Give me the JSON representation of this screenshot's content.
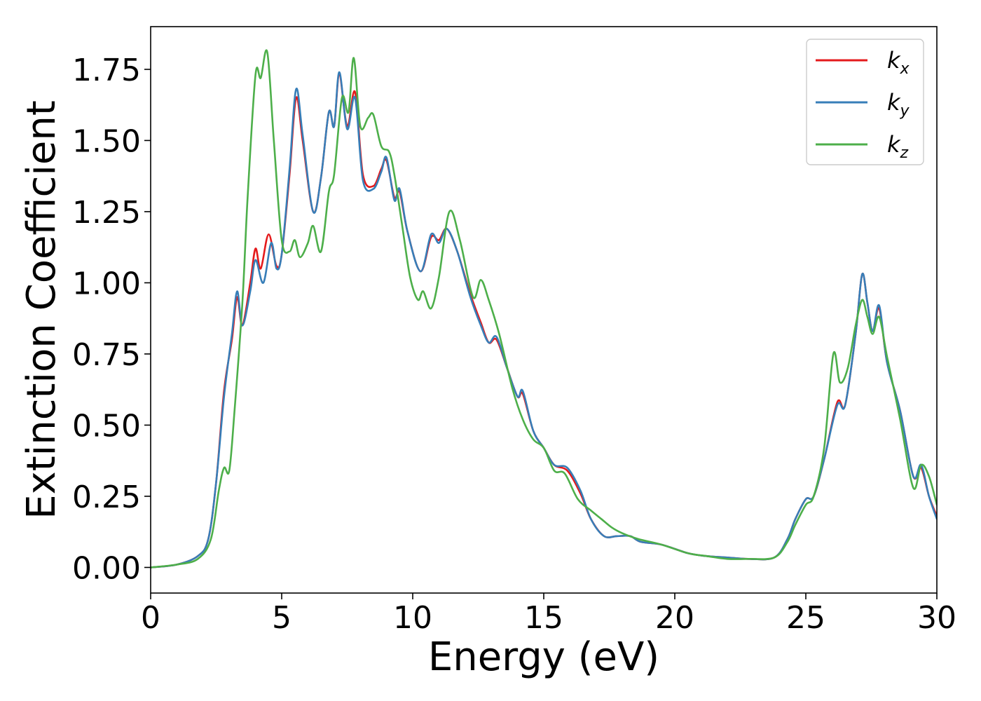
{
  "chart_data": {
    "type": "line",
    "xlabel": "Energy (eV)",
    "ylabel": "Extinction Coefficient",
    "xlim": [
      0,
      30
    ],
    "ylim": [
      -0.09,
      1.9
    ],
    "xticks": [
      0,
      5,
      10,
      15,
      20,
      25,
      30
    ],
    "xtick_labels": [
      "0",
      "5",
      "10",
      "15",
      "20",
      "25",
      "30"
    ],
    "yticks": [
      0.0,
      0.25,
      0.5,
      0.75,
      1.0,
      1.25,
      1.5,
      1.75
    ],
    "ytick_labels": [
      "0.00",
      "0.25",
      "0.50",
      "0.75",
      "1.00",
      "1.25",
      "1.50",
      "1.75"
    ],
    "grid": false,
    "legend_position": "top-right",
    "series": [
      {
        "name": "k_x",
        "label_base": "k",
        "label_sub": "x",
        "color": "#e41a1c",
        "points": [
          [
            0,
            0.0
          ],
          [
            1,
            0.01
          ],
          [
            1.8,
            0.04
          ],
          [
            2.2,
            0.1
          ],
          [
            2.5,
            0.3
          ],
          [
            2.8,
            0.62
          ],
          [
            3.1,
            0.8
          ],
          [
            3.3,
            0.95
          ],
          [
            3.5,
            0.85
          ],
          [
            3.8,
            1.0
          ],
          [
            4.0,
            1.12
          ],
          [
            4.2,
            1.05
          ],
          [
            4.5,
            1.17
          ],
          [
            4.8,
            1.06
          ],
          [
            5.0,
            1.1
          ],
          [
            5.3,
            1.38
          ],
          [
            5.55,
            1.65
          ],
          [
            5.8,
            1.5
          ],
          [
            6.2,
            1.25
          ],
          [
            6.5,
            1.37
          ],
          [
            6.8,
            1.6
          ],
          [
            7.0,
            1.55
          ],
          [
            7.2,
            1.73
          ],
          [
            7.5,
            1.55
          ],
          [
            7.8,
            1.67
          ],
          [
            8.1,
            1.38
          ],
          [
            8.5,
            1.34
          ],
          [
            8.8,
            1.4
          ],
          [
            9.0,
            1.43
          ],
          [
            9.3,
            1.3
          ],
          [
            9.5,
            1.32
          ],
          [
            9.8,
            1.18
          ],
          [
            10.3,
            1.04
          ],
          [
            10.7,
            1.16
          ],
          [
            11.0,
            1.15
          ],
          [
            11.3,
            1.19
          ],
          [
            11.7,
            1.11
          ],
          [
            12.2,
            0.96
          ],
          [
            12.6,
            0.86
          ],
          [
            12.9,
            0.79
          ],
          [
            13.2,
            0.8
          ],
          [
            13.6,
            0.7
          ],
          [
            14.0,
            0.6
          ],
          [
            14.2,
            0.61
          ],
          [
            14.6,
            0.48
          ],
          [
            15.0,
            0.42
          ],
          [
            15.4,
            0.36
          ],
          [
            15.9,
            0.34
          ],
          [
            16.4,
            0.26
          ],
          [
            16.8,
            0.17
          ],
          [
            17.3,
            0.11
          ],
          [
            17.8,
            0.11
          ],
          [
            18.3,
            0.11
          ],
          [
            18.7,
            0.09
          ],
          [
            19.5,
            0.08
          ],
          [
            20.5,
            0.05
          ],
          [
            21.2,
            0.04
          ],
          [
            22.0,
            0.035
          ],
          [
            22.8,
            0.03
          ],
          [
            23.8,
            0.035
          ],
          [
            24.3,
            0.1
          ],
          [
            24.6,
            0.17
          ],
          [
            25.0,
            0.24
          ],
          [
            25.3,
            0.25
          ],
          [
            25.7,
            0.38
          ],
          [
            26.2,
            0.58
          ],
          [
            26.5,
            0.57
          ],
          [
            26.9,
            0.82
          ],
          [
            27.15,
            1.03
          ],
          [
            27.35,
            0.93
          ],
          [
            27.55,
            0.83
          ],
          [
            27.8,
            0.91
          ],
          [
            28.1,
            0.72
          ],
          [
            28.6,
            0.55
          ],
          [
            29.1,
            0.32
          ],
          [
            29.4,
            0.35
          ],
          [
            29.7,
            0.25
          ],
          [
            30,
            0.18
          ]
        ]
      },
      {
        "name": "k_y",
        "label_base": "k",
        "label_sub": "y",
        "color": "#377eb8",
        "points": [
          [
            0,
            0.0
          ],
          [
            1,
            0.01
          ],
          [
            1.8,
            0.04
          ],
          [
            2.2,
            0.1
          ],
          [
            2.5,
            0.3
          ],
          [
            2.8,
            0.6
          ],
          [
            3.1,
            0.82
          ],
          [
            3.3,
            0.97
          ],
          [
            3.5,
            0.85
          ],
          [
            3.8,
            0.97
          ],
          [
            4.0,
            1.08
          ],
          [
            4.3,
            1.0
          ],
          [
            4.6,
            1.14
          ],
          [
            4.8,
            1.05
          ],
          [
            5.0,
            1.1
          ],
          [
            5.3,
            1.4
          ],
          [
            5.55,
            1.68
          ],
          [
            5.8,
            1.52
          ],
          [
            6.2,
            1.25
          ],
          [
            6.5,
            1.37
          ],
          [
            6.8,
            1.6
          ],
          [
            7.0,
            1.55
          ],
          [
            7.2,
            1.74
          ],
          [
            7.5,
            1.54
          ],
          [
            7.8,
            1.65
          ],
          [
            8.1,
            1.36
          ],
          [
            8.5,
            1.33
          ],
          [
            8.8,
            1.39
          ],
          [
            9.0,
            1.44
          ],
          [
            9.3,
            1.29
          ],
          [
            9.5,
            1.33
          ],
          [
            9.8,
            1.18
          ],
          [
            10.3,
            1.04
          ],
          [
            10.7,
            1.17
          ],
          [
            11.0,
            1.14
          ],
          [
            11.3,
            1.19
          ],
          [
            11.7,
            1.11
          ],
          [
            12.2,
            0.95
          ],
          [
            12.6,
            0.85
          ],
          [
            12.9,
            0.79
          ],
          [
            13.2,
            0.81
          ],
          [
            13.6,
            0.7
          ],
          [
            14.0,
            0.6
          ],
          [
            14.2,
            0.62
          ],
          [
            14.6,
            0.48
          ],
          [
            15.0,
            0.42
          ],
          [
            15.4,
            0.36
          ],
          [
            15.9,
            0.35
          ],
          [
            16.4,
            0.27
          ],
          [
            16.8,
            0.17
          ],
          [
            17.3,
            0.11
          ],
          [
            17.8,
            0.11
          ],
          [
            18.3,
            0.11
          ],
          [
            18.7,
            0.09
          ],
          [
            19.5,
            0.08
          ],
          [
            20.5,
            0.05
          ],
          [
            21.2,
            0.04
          ],
          [
            22.0,
            0.035
          ],
          [
            22.8,
            0.03
          ],
          [
            23.8,
            0.035
          ],
          [
            24.3,
            0.1
          ],
          [
            24.6,
            0.17
          ],
          [
            25.0,
            0.24
          ],
          [
            25.3,
            0.25
          ],
          [
            25.7,
            0.38
          ],
          [
            26.2,
            0.57
          ],
          [
            26.5,
            0.57
          ],
          [
            26.9,
            0.82
          ],
          [
            27.15,
            1.03
          ],
          [
            27.35,
            0.93
          ],
          [
            27.55,
            0.83
          ],
          [
            27.8,
            0.92
          ],
          [
            28.1,
            0.72
          ],
          [
            28.6,
            0.55
          ],
          [
            29.1,
            0.32
          ],
          [
            29.4,
            0.36
          ],
          [
            29.7,
            0.25
          ],
          [
            30,
            0.17
          ]
        ]
      },
      {
        "name": "k_z",
        "label_base": "k",
        "label_sub": "z",
        "color": "#4daf4a",
        "points": [
          [
            0,
            0.0
          ],
          [
            1,
            0.01
          ],
          [
            1.8,
            0.03
          ],
          [
            2.3,
            0.1
          ],
          [
            2.6,
            0.27
          ],
          [
            2.8,
            0.35
          ],
          [
            3.0,
            0.34
          ],
          [
            3.2,
            0.55
          ],
          [
            3.5,
            0.93
          ],
          [
            3.7,
            1.3
          ],
          [
            4.0,
            1.73
          ],
          [
            4.2,
            1.72
          ],
          [
            4.45,
            1.81
          ],
          [
            4.7,
            1.5
          ],
          [
            5.0,
            1.15
          ],
          [
            5.3,
            1.11
          ],
          [
            5.5,
            1.15
          ],
          [
            5.7,
            1.09
          ],
          [
            6.0,
            1.14
          ],
          [
            6.2,
            1.2
          ],
          [
            6.5,
            1.11
          ],
          [
            6.8,
            1.32
          ],
          [
            7.0,
            1.38
          ],
          [
            7.3,
            1.65
          ],
          [
            7.55,
            1.6
          ],
          [
            7.75,
            1.79
          ],
          [
            8.0,
            1.55
          ],
          [
            8.3,
            1.58
          ],
          [
            8.5,
            1.59
          ],
          [
            8.8,
            1.48
          ],
          [
            9.1,
            1.46
          ],
          [
            9.3,
            1.38
          ],
          [
            9.6,
            1.2
          ],
          [
            9.9,
            1.02
          ],
          [
            10.2,
            0.94
          ],
          [
            10.4,
            0.97
          ],
          [
            10.7,
            0.91
          ],
          [
            11.0,
            1.02
          ],
          [
            11.4,
            1.25
          ],
          [
            11.8,
            1.15
          ],
          [
            12.3,
            0.95
          ],
          [
            12.6,
            1.01
          ],
          [
            12.9,
            0.94
          ],
          [
            13.3,
            0.82
          ],
          [
            13.8,
            0.63
          ],
          [
            14.2,
            0.52
          ],
          [
            14.6,
            0.45
          ],
          [
            15.0,
            0.42
          ],
          [
            15.4,
            0.34
          ],
          [
            15.8,
            0.33
          ],
          [
            16.3,
            0.24
          ],
          [
            16.8,
            0.2
          ],
          [
            17.2,
            0.17
          ],
          [
            17.6,
            0.14
          ],
          [
            18.0,
            0.12
          ],
          [
            18.6,
            0.1
          ],
          [
            19.5,
            0.08
          ],
          [
            20.5,
            0.05
          ],
          [
            21.2,
            0.04
          ],
          [
            22.0,
            0.03
          ],
          [
            22.8,
            0.03
          ],
          [
            23.8,
            0.035
          ],
          [
            24.3,
            0.09
          ],
          [
            24.6,
            0.15
          ],
          [
            25.0,
            0.22
          ],
          [
            25.3,
            0.25
          ],
          [
            25.7,
            0.42
          ],
          [
            26.05,
            0.75
          ],
          [
            26.3,
            0.65
          ],
          [
            26.6,
            0.7
          ],
          [
            26.9,
            0.85
          ],
          [
            27.15,
            0.94
          ],
          [
            27.35,
            0.88
          ],
          [
            27.55,
            0.82
          ],
          [
            27.8,
            0.88
          ],
          [
            28.1,
            0.74
          ],
          [
            28.6,
            0.52
          ],
          [
            29.1,
            0.28
          ],
          [
            29.4,
            0.36
          ],
          [
            29.7,
            0.32
          ],
          [
            30,
            0.22
          ]
        ]
      }
    ]
  }
}
